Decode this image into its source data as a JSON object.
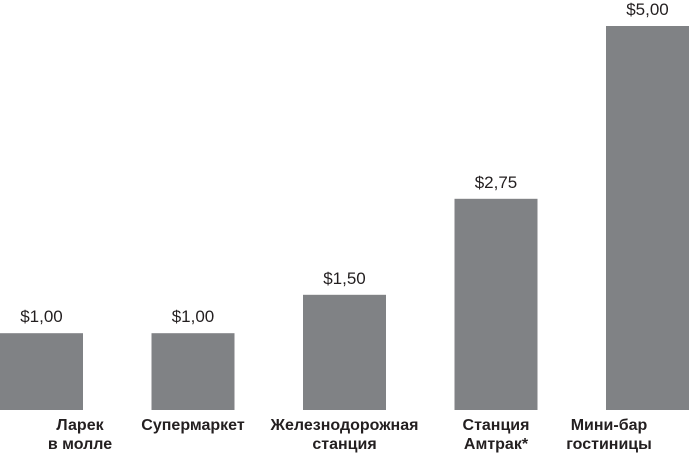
{
  "chart_data": {
    "type": "bar",
    "categories": [
      "Ларек\nв молле",
      "Супермаркет",
      "Железнодорожная\nстанция",
      "Станция\nАмтрак*",
      "Мини-бар\nгостиницы"
    ],
    "values": [
      1,
      1,
      1.5,
      2.75,
      5
    ],
    "value_labels": [
      "$1,00",
      "$1,00",
      "$1,50",
      "$2,75",
      "$5,00"
    ],
    "color": "#808285"
  }
}
